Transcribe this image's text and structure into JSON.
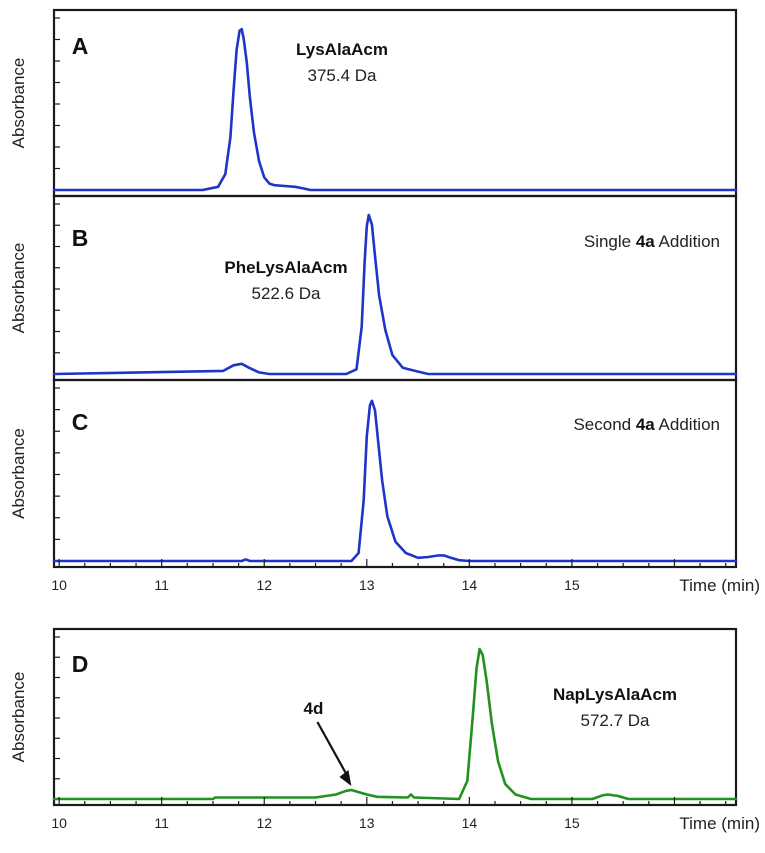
{
  "chart_data": [
    {
      "panel": "A",
      "type": "line",
      "color": "#1f35c8",
      "ylabel": "Absorbance",
      "xlim": [
        9.95,
        16.6
      ],
      "ylim": [
        0,
        1.08
      ],
      "label_parts": [
        {
          "text": "",
          "bold": false
        }
      ],
      "peak_labels": [
        {
          "name": "LysAlaAcm",
          "mass": "375.4 Da"
        }
      ],
      "x": [
        9.95,
        11.4,
        11.55,
        11.62,
        11.67,
        11.7,
        11.73,
        11.76,
        11.78,
        11.8,
        11.83,
        11.86,
        11.9,
        11.95,
        12.0,
        12.05,
        12.1,
        12.2,
        12.3,
        12.38,
        12.45,
        13.0,
        14.0,
        15.0,
        16.6
      ],
      "y": [
        0.0,
        0.0,
        0.02,
        0.1,
        0.33,
        0.62,
        0.88,
        1.0,
        1.01,
        0.95,
        0.8,
        0.58,
        0.36,
        0.18,
        0.08,
        0.04,
        0.03,
        0.025,
        0.02,
        0.01,
        0.0,
        0.0,
        0.0,
        0.0,
        0.0
      ]
    },
    {
      "panel": "B",
      "type": "line",
      "color": "#1f35c8",
      "ylabel": "Absorbance",
      "xlim": [
        9.95,
        16.6
      ],
      "ylim": [
        0,
        1.08
      ],
      "label_parts": [
        {
          "text": "Single ",
          "bold": false
        },
        {
          "text": "4a",
          "bold": true
        },
        {
          "text": " Addition",
          "bold": false
        }
      ],
      "peak_labels": [
        {
          "name": "PheLysAlaAcm",
          "mass": "522.6 Da"
        }
      ],
      "x": [
        9.95,
        11.6,
        11.7,
        11.78,
        11.85,
        11.95,
        12.05,
        12.8,
        12.9,
        12.95,
        12.98,
        13.0,
        13.02,
        13.05,
        13.08,
        13.12,
        13.18,
        13.25,
        13.35,
        13.5,
        13.6,
        14.0,
        15.0,
        16.6
      ],
      "y": [
        0.0,
        0.02,
        0.055,
        0.065,
        0.04,
        0.01,
        0.0,
        0.0,
        0.03,
        0.3,
        0.72,
        0.94,
        1.01,
        0.95,
        0.75,
        0.5,
        0.28,
        0.12,
        0.04,
        0.015,
        0.0,
        0.0,
        0.0,
        0.0
      ]
    },
    {
      "panel": "C",
      "type": "line",
      "color": "#1f35c8",
      "ylabel": "Absorbance",
      "xlim": [
        9.95,
        16.6
      ],
      "ylim": [
        0,
        1.08
      ],
      "label_parts": [
        {
          "text": "Second ",
          "bold": false
        },
        {
          "text": "4a",
          "bold": true
        },
        {
          "text": " Addition",
          "bold": false
        }
      ],
      "peak_labels": [],
      "x": [
        9.95,
        11.78,
        11.82,
        11.86,
        12.85,
        12.92,
        12.97,
        13.0,
        13.03,
        13.05,
        13.08,
        13.11,
        13.15,
        13.2,
        13.28,
        13.38,
        13.5,
        13.6,
        13.7,
        13.75,
        13.82,
        13.9,
        14.0,
        15.0,
        16.6
      ],
      "y": [
        0.0,
        0.0,
        0.01,
        0.0,
        0.0,
        0.05,
        0.38,
        0.78,
        0.97,
        1.0,
        0.94,
        0.75,
        0.5,
        0.28,
        0.12,
        0.05,
        0.02,
        0.025,
        0.035,
        0.035,
        0.02,
        0.005,
        0.0,
        0.0,
        0.0
      ],
      "xaxis": {
        "ticks": [
          10,
          11,
          12,
          13,
          14,
          15
        ],
        "title": "Time (min)"
      }
    },
    {
      "panel": "D",
      "type": "line",
      "color": "#23911e",
      "ylabel": "Absorbance",
      "xlim": [
        9.95,
        16.6
      ],
      "ylim": [
        0,
        1.08
      ],
      "label_parts": [
        {
          "text": "",
          "bold": false
        }
      ],
      "peak_labels": [
        {
          "name": "NapLysAlaAcm",
          "mass": "572.7 Da"
        }
      ],
      "arrow_label": {
        "text": "4d",
        "x": 12.85
      },
      "x": [
        9.95,
        11.5,
        11.52,
        12.5,
        12.7,
        12.8,
        12.85,
        12.9,
        13.0,
        13.1,
        13.4,
        13.43,
        13.46,
        13.9,
        13.98,
        14.03,
        14.07,
        14.1,
        14.13,
        14.17,
        14.22,
        14.28,
        14.35,
        14.45,
        14.6,
        15.2,
        15.3,
        15.35,
        15.45,
        15.55,
        16.6
      ],
      "y": [
        0.0,
        0.0,
        0.01,
        0.01,
        0.03,
        0.055,
        0.06,
        0.05,
        0.03,
        0.015,
        0.01,
        0.03,
        0.01,
        0.0,
        0.12,
        0.52,
        0.87,
        1.0,
        0.96,
        0.78,
        0.5,
        0.25,
        0.1,
        0.03,
        0.0,
        0.0,
        0.025,
        0.03,
        0.02,
        0.0,
        0.0
      ],
      "xaxis": {
        "ticks": [
          10,
          11,
          12,
          13,
          14,
          15
        ],
        "title": "Time (min)"
      }
    }
  ]
}
